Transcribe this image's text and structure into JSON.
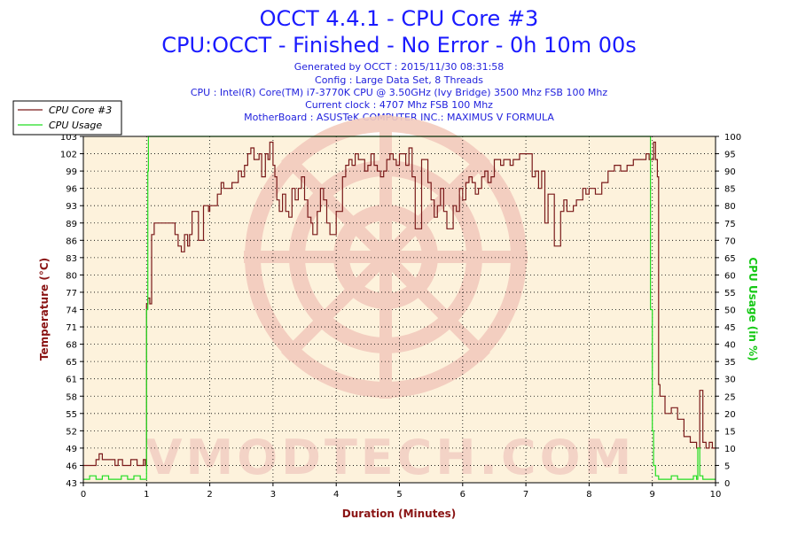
{
  "header": {
    "title_line1": "OCCT 4.4.1 - CPU Core #3",
    "title_line2": "CPU:OCCT - Finished - No Error - 0h 10m 00s",
    "info_lines": [
      "Generated by OCCT : 2015/11/30 08:31:58",
      "Config : Large Data Set, 8 Threads",
      "CPU : Intel(R) Core(TM) i7-3770K CPU @ 3.50GHz (Ivy Bridge) 3500 Mhz FSB 100 Mhz",
      "Current clock : 4707 Mhz FSB 100 Mhz",
      "MotherBoard : ASUSTeK COMPUTER INC.: MAXIMUS V FORMULA"
    ]
  },
  "watermark": {
    "text": "VMODTECH.COM"
  },
  "colors": {
    "temperature": "#7a1a1a",
    "cpu_usage": "#22dd22",
    "plot_bg": "#fdf2dc",
    "grid": "#000000",
    "watermark": "#f2d0c4"
  },
  "chart_data": {
    "type": "line",
    "xlabel": "Duration (Minutes)",
    "ylabel_left": "Temperature (°C)",
    "ylabel_right": "CPU Usage (in %)",
    "xlim": [
      0,
      10
    ],
    "ylim_left": [
      43,
      103
    ],
    "ylim_right": [
      0,
      100
    ],
    "grid": true,
    "legend_position": "top-left-outside",
    "x_ticks": [
      "0",
      "1",
      "2",
      "3",
      "4",
      "5",
      "6",
      "7",
      "8",
      "9",
      "10"
    ],
    "y_left_ticks": [
      "43",
      "46",
      "49",
      "52",
      "55",
      "58",
      "61",
      "65",
      "68",
      "71",
      "74",
      "77",
      "80",
      "83",
      "86",
      "89",
      "93",
      "96",
      "99",
      "102",
      "103"
    ],
    "y_right_ticks": [
      "0",
      "5",
      "10",
      "15",
      "20",
      "25",
      "30",
      "35",
      "40",
      "45",
      "50",
      "55",
      "60",
      "65",
      "70",
      "75",
      "80",
      "85",
      "90",
      "95",
      "100"
    ],
    "series": [
      {
        "name": "CPU Core #3",
        "axis": "left",
        "x": [
          0,
          0.05,
          0.2,
          0.25,
          0.3,
          0.4,
          0.5,
          0.55,
          0.62,
          0.68,
          0.75,
          0.85,
          0.9,
          0.95,
          0.98,
          1.0,
          1.02,
          1.05,
          1.08,
          1.12,
          1.15,
          1.2,
          1.3,
          1.45,
          1.5,
          1.55,
          1.6,
          1.65,
          1.68,
          1.72,
          1.8,
          1.82,
          1.85,
          1.9,
          1.95,
          1.98,
          2.0,
          2.05,
          2.12,
          2.18,
          2.22,
          2.3,
          2.35,
          2.45,
          2.5,
          2.55,
          2.6,
          2.65,
          2.7,
          2.75,
          2.78,
          2.82,
          2.88,
          2.92,
          2.95,
          3.0,
          3.03,
          3.06,
          3.1,
          3.15,
          3.2,
          3.25,
          3.3,
          3.35,
          3.4,
          3.45,
          3.5,
          3.55,
          3.6,
          3.63,
          3.66,
          3.7,
          3.75,
          3.8,
          3.85,
          3.9,
          3.95,
          4.0,
          4.05,
          4.1,
          4.15,
          4.2,
          4.25,
          4.3,
          4.35,
          4.4,
          4.45,
          4.5,
          4.55,
          4.6,
          4.65,
          4.7,
          4.75,
          4.8,
          4.85,
          4.9,
          4.95,
          5.0,
          5.05,
          5.1,
          5.15,
          5.2,
          5.25,
          5.3,
          5.35,
          5.4,
          5.45,
          5.5,
          5.55,
          5.6,
          5.65,
          5.7,
          5.75,
          5.8,
          5.85,
          5.9,
          5.95,
          6.0,
          6.05,
          6.1,
          6.15,
          6.2,
          6.25,
          6.3,
          6.35,
          6.4,
          6.45,
          6.5,
          6.55,
          6.6,
          6.65,
          6.7,
          6.75,
          6.8,
          6.85,
          6.9,
          6.95,
          7.0,
          7.05,
          7.1,
          7.15,
          7.2,
          7.25,
          7.3,
          7.35,
          7.4,
          7.45,
          7.5,
          7.55,
          7.6,
          7.65,
          7.7,
          7.75,
          7.8,
          7.85,
          7.9,
          7.95,
          8.0,
          8.05,
          8.1,
          8.2,
          8.3,
          8.4,
          8.5,
          8.6,
          8.7,
          8.8,
          8.9,
          8.95,
          9.0,
          9.02,
          9.05,
          9.08,
          9.1,
          9.12,
          9.2,
          9.3,
          9.4,
          9.5,
          9.6,
          9.7,
          9.75,
          9.8,
          9.85,
          9.9,
          9.95,
          10.0
        ],
        "y": [
          46,
          46,
          47,
          48,
          47,
          47,
          46,
          47,
          46,
          46,
          47,
          46,
          46,
          47,
          46,
          74,
          75,
          74,
          86,
          88,
          88,
          88,
          88,
          86,
          84,
          83,
          86,
          84,
          86,
          90,
          90,
          85,
          85,
          91,
          91,
          90,
          91,
          91,
          93,
          95,
          94,
          94,
          95,
          97,
          96,
          98,
          100,
          101,
          99,
          99,
          100,
          96,
          100,
          99,
          102,
          98,
          96,
          92,
          90,
          93,
          90,
          89,
          94,
          92,
          94,
          96,
          92,
          89,
          88,
          86,
          86,
          90,
          94,
          92,
          88,
          86,
          86,
          90,
          90,
          96,
          98,
          99,
          98,
          100,
          99,
          99,
          97,
          98,
          100,
          98,
          97,
          96,
          97,
          99,
          100,
          99,
          98,
          100,
          100,
          98,
          101,
          96,
          87,
          87,
          99,
          99,
          95,
          92,
          89,
          91,
          94,
          90,
          87,
          87,
          91,
          90,
          94,
          92,
          95,
          96,
          95,
          93,
          94,
          96,
          97,
          95,
          96,
          99,
          99,
          98,
          99,
          99,
          98,
          99,
          99,
          100,
          100,
          100,
          100,
          96,
          97,
          94,
          97,
          88,
          93,
          93,
          84,
          84,
          90,
          92,
          90,
          90,
          91,
          92,
          92,
          94,
          93,
          94,
          94,
          93,
          95,
          97,
          98,
          97,
          98,
          99,
          99,
          100,
          99,
          99,
          102,
          99,
          96,
          60,
          58,
          55,
          56,
          54,
          51,
          50,
          49,
          59,
          50,
          49,
          50,
          49,
          49
        ]
      },
      {
        "name": "CPU Usage",
        "axis": "right",
        "x": [
          0,
          0.1,
          0.2,
          0.3,
          0.4,
          0.5,
          0.6,
          0.7,
          0.8,
          0.9,
          0.98,
          1.0,
          1.02,
          1.03,
          8.95,
          8.97,
          9.0,
          9.02,
          9.05,
          9.1,
          9.2,
          9.3,
          9.4,
          9.5,
          9.6,
          9.65,
          9.7,
          9.72,
          9.75,
          9.8,
          9.9,
          10.0
        ],
        "y": [
          1,
          2,
          1,
          2,
          1,
          1,
          2,
          1,
          2,
          1,
          1,
          50,
          90,
          100,
          100,
          50,
          15,
          5,
          2,
          1,
          1,
          2,
          1,
          1,
          1,
          2,
          1,
          10,
          2,
          1,
          1,
          1
        ]
      }
    ]
  }
}
